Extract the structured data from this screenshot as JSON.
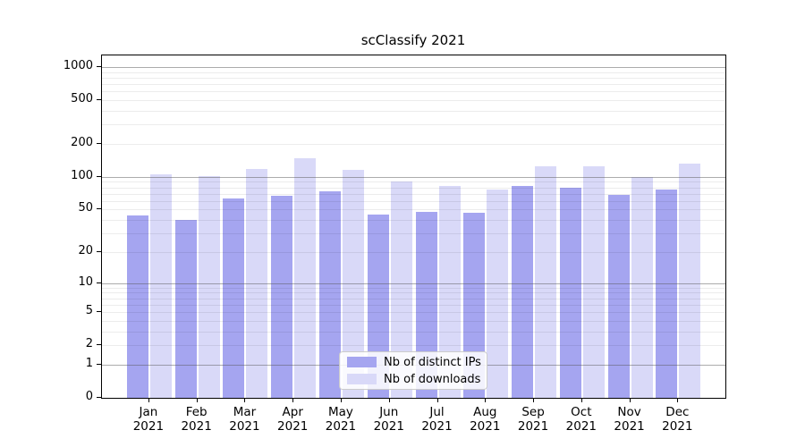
{
  "title": "scClassify 2021",
  "colors": {
    "ips_bar": "#a5a5f0",
    "downloads_bar": "#d9d9f8",
    "grid_major": "#b0b0b0",
    "grid_minor": "#ececec",
    "spine": "#000000",
    "legend_border": "#cccccc",
    "background": "#ffffff"
  },
  "chart_data": {
    "type": "bar",
    "title": "scClassify 2021",
    "categories": [
      "Jan",
      "Feb",
      "Mar",
      "Apr",
      "May",
      "Jun",
      "Jul",
      "Aug",
      "Sep",
      "Oct",
      "Nov",
      "Dec"
    ],
    "tick_year": "2021",
    "series": [
      {
        "name": "Nb of distinct IPs",
        "color": "#a5a5f0",
        "values": [
          44,
          40,
          63,
          67,
          74,
          45,
          48,
          47,
          82,
          80,
          69,
          76
        ]
      },
      {
        "name": "Nb of downloads",
        "color": "#d9d9f8",
        "values": [
          105,
          102,
          119,
          148,
          117,
          91,
          83,
          76,
          126,
          126,
          100,
          132
        ]
      }
    ],
    "yscale": "log1p",
    "yticks": [
      1000,
      500,
      200,
      100,
      50,
      20,
      10,
      5,
      2,
      1,
      0
    ],
    "ylim": [
      0,
      1250
    ],
    "grid": true,
    "legend_position": "lower-center",
    "xlabel": "",
    "ylabel": ""
  }
}
